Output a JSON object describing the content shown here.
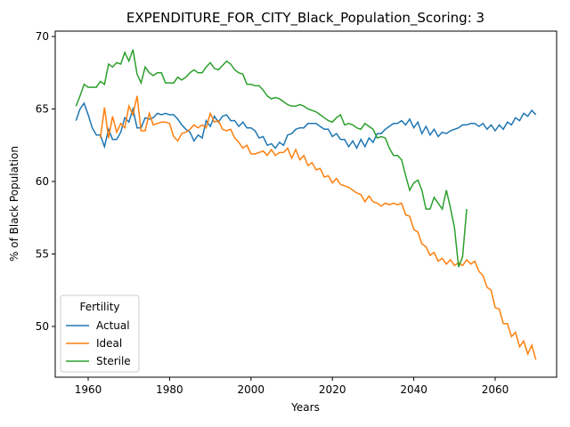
{
  "chart_data": {
    "type": "line",
    "title": "EXPENDITURE_FOR_CITY_Black_Population_Scoring: 3",
    "xlabel": "Years",
    "ylabel": "% of Black Population",
    "legend_title": "Fertility",
    "legend": "lower left",
    "xlim": [
      1951.9,
      2075.1
    ],
    "ylim": [
      46.5,
      70.37
    ],
    "xticks": [
      1960,
      1980,
      2000,
      2020,
      2040,
      2060
    ],
    "yticks": [
      50,
      55,
      60,
      65,
      70
    ],
    "x": [
      1957,
      1958,
      1959,
      1960,
      1961,
      1962,
      1963,
      1964,
      1965,
      1966,
      1967,
      1968,
      1969,
      1970,
      1971,
      1972,
      1973,
      1974,
      1975,
      1976,
      1977,
      1978,
      1979,
      1980,
      1981,
      1982,
      1983,
      1984,
      1985,
      1986,
      1987,
      1988,
      1989,
      1990,
      1991,
      1992,
      1993,
      1994,
      1995,
      1996,
      1997,
      1998,
      1999,
      2000,
      2001,
      2002,
      2003,
      2004,
      2005,
      2006,
      2007,
      2008,
      2009,
      2010,
      2011,
      2012,
      2013,
      2014,
      2015,
      2016,
      2017,
      2018,
      2019,
      2020,
      2021,
      2022,
      2023,
      2024,
      2025,
      2026,
      2027,
      2028,
      2029,
      2030,
      2031,
      2032,
      2033,
      2034,
      2035,
      2036,
      2037,
      2038,
      2039,
      2040,
      2041,
      2042,
      2043,
      2044,
      2045,
      2046,
      2047,
      2048,
      2049,
      2050,
      2051,
      2052,
      2053,
      2054,
      2055,
      2056,
      2057,
      2058,
      2059,
      2060,
      2061,
      2062,
      2063,
      2064,
      2065,
      2066,
      2067,
      2068,
      2069,
      2070
    ],
    "series": [
      {
        "name": "Actual",
        "color": "#1f77b4",
        "values": [
          64.2,
          65.0,
          65.4,
          64.6,
          63.7,
          63.2,
          63.2,
          62.4,
          63.6,
          62.9,
          62.9,
          63.4,
          64.4,
          64.1,
          65.0,
          63.7,
          63.7,
          64.4,
          64.3,
          64.4,
          64.7,
          64.6,
          64.7,
          64.6,
          64.6,
          64.3,
          63.9,
          63.6,
          63.4,
          62.8,
          63.2,
          63.0,
          64.2,
          63.8,
          64.5,
          64.1,
          64.5,
          64.6,
          64.2,
          64.2,
          63.8,
          64.1,
          63.7,
          63.7,
          63.5,
          63.0,
          63.1,
          62.5,
          62.6,
          62.3,
          62.7,
          62.5,
          63.2,
          63.3,
          63.6,
          63.7,
          63.7,
          64.0,
          64.0,
          64.0,
          63.8,
          63.6,
          63.6,
          63.1,
          63.3,
          62.9,
          62.9,
          62.4,
          62.8,
          62.3,
          62.9,
          62.4,
          63.0,
          62.7,
          63.3,
          63.3,
          63.6,
          63.8,
          64.0,
          64.0,
          64.2,
          63.9,
          64.3,
          63.7,
          64.1,
          63.3,
          63.8,
          63.2,
          63.6,
          63.1,
          63.4,
          63.3,
          63.5,
          63.6,
          63.7,
          63.9,
          63.9,
          64.0,
          64.0,
          63.8,
          64.0,
          63.6,
          63.9,
          63.5,
          63.9,
          63.6,
          64.1,
          63.9,
          64.4,
          64.2,
          64.7,
          64.5,
          64.9,
          64.6
        ]
      },
      {
        "name": "Ideal",
        "color": "#ff7f0e",
        "values": [
          null,
          null,
          null,
          null,
          null,
          null,
          63.0,
          65.1,
          63.0,
          64.5,
          63.4,
          64.0,
          63.7,
          65.2,
          64.6,
          65.9,
          63.5,
          63.5,
          64.7,
          63.9,
          64.0,
          64.1,
          64.1,
          64.0,
          63.1,
          62.8,
          63.3,
          63.4,
          63.6,
          63.9,
          63.7,
          63.9,
          63.7,
          64.7,
          64.1,
          64.2,
          63.6,
          63.5,
          63.6,
          63.0,
          62.7,
          62.3,
          62.5,
          61.9,
          61.9,
          62.0,
          62.1,
          61.8,
          62.2,
          61.8,
          62.0,
          62.0,
          62.3,
          61.6,
          62.2,
          61.5,
          61.8,
          61.1,
          61.3,
          60.8,
          60.9,
          60.3,
          60.4,
          59.9,
          60.2,
          59.8,
          59.7,
          59.6,
          59.4,
          59.2,
          59.1,
          58.6,
          59.0,
          58.6,
          58.5,
          58.3,
          58.5,
          58.4,
          58.5,
          58.4,
          58.5,
          57.7,
          57.6,
          56.7,
          56.5,
          55.7,
          55.5,
          54.9,
          55.1,
          54.5,
          54.7,
          54.3,
          54.6,
          54.2,
          54.4,
          54.2,
          54.6,
          54.3,
          54.5,
          53.8,
          53.5,
          52.7,
          52.5,
          51.3,
          51.2,
          50.2,
          50.2,
          49.3,
          49.6,
          48.6,
          49.0,
          48.1,
          48.7,
          47.7
        ]
      },
      {
        "name": "Sterile",
        "color": "#2ca02c",
        "values": [
          65.2,
          65.9,
          66.7,
          66.5,
          66.5,
          66.5,
          66.9,
          66.7,
          68.1,
          67.9,
          68.2,
          68.1,
          68.9,
          68.3,
          69.1,
          67.4,
          66.8,
          67.9,
          67.5,
          67.3,
          67.5,
          67.5,
          66.8,
          66.8,
          66.8,
          67.2,
          67.0,
          67.2,
          67.5,
          67.7,
          67.5,
          67.5,
          67.9,
          68.2,
          67.8,
          67.7,
          68.0,
          68.3,
          68.1,
          67.7,
          67.5,
          67.4,
          66.7,
          66.7,
          66.6,
          66.6,
          66.3,
          65.9,
          65.7,
          65.8,
          65.7,
          65.5,
          65.3,
          65.2,
          65.2,
          65.3,
          65.2,
          65.0,
          64.9,
          64.8,
          64.6,
          64.4,
          64.2,
          64.1,
          64.4,
          64.6,
          63.9,
          64.0,
          63.9,
          63.7,
          63.6,
          64.0,
          63.8,
          63.6,
          63.0,
          63.1,
          63.0,
          62.3,
          61.8,
          61.8,
          61.5,
          60.4,
          59.4,
          59.9,
          60.1,
          59.4,
          58.1,
          58.1,
          58.9,
          58.5,
          58.1,
          59.4,
          58.2,
          56.8,
          54.1,
          54.8,
          58.1,
          null,
          null,
          null,
          null,
          null,
          null,
          null,
          null,
          null,
          null,
          null,
          null,
          null,
          null,
          null,
          null,
          null
        ]
      }
    ]
  }
}
